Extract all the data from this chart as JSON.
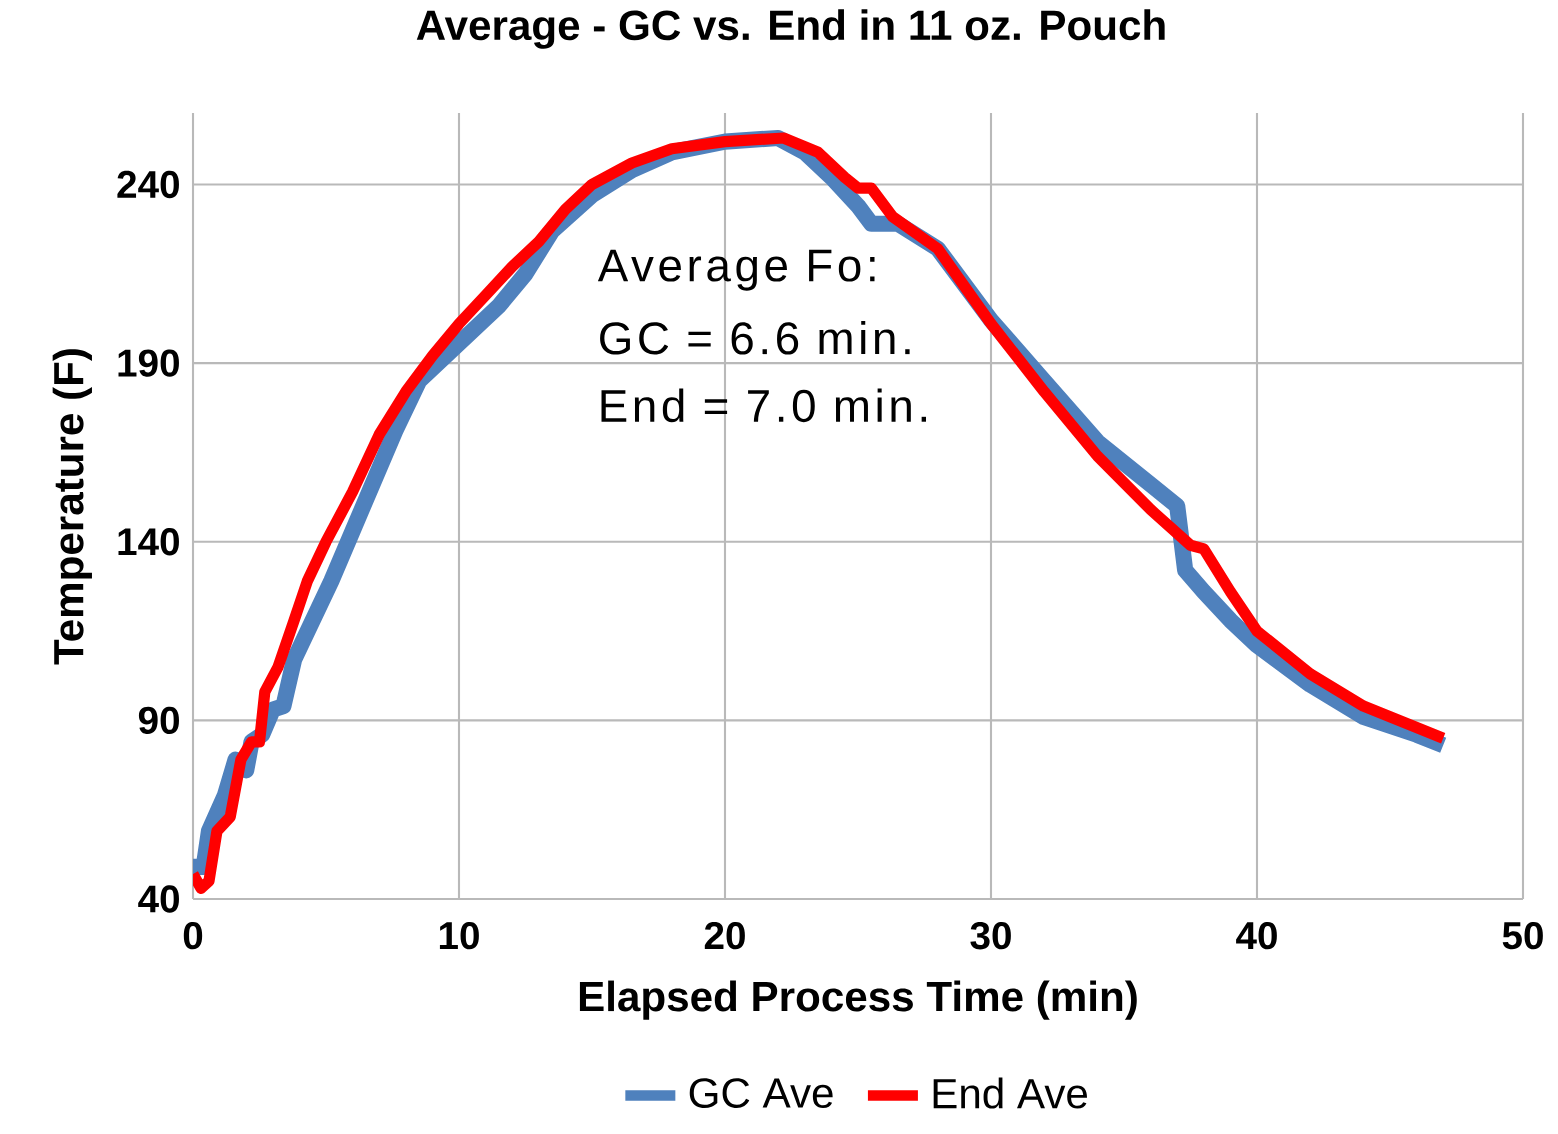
{
  "chart_data": {
    "type": "line",
    "title": "Average - GC vs. End in 11 oz. Pouch",
    "xlabel": "Elapsed Process Time (min)",
    "ylabel": "Temperature (F)",
    "xlim": [
      0,
      50
    ],
    "ylim": [
      40,
      260
    ],
    "xticks": [
      0,
      10,
      20,
      30,
      40,
      50
    ],
    "yticks": [
      40,
      90,
      140,
      190,
      240
    ],
    "grid": true,
    "legend": "bottom",
    "annotations": [
      "Average Fo:",
      "GC = 6.6 min.",
      "End = 7.0 min."
    ],
    "series": [
      {
        "name": "GC Ave",
        "color": "#4f81bd",
        "x": [
          0,
          0.4,
          0.6,
          1.2,
          1.6,
          2.0,
          2.2,
          2.6,
          3.0,
          3.4,
          3.8,
          4.5,
          5.2,
          6,
          6.8,
          7.6,
          8.5,
          9.5,
          10.5,
          11.5,
          12.5,
          13.5,
          15,
          16.5,
          18,
          20,
          22,
          23,
          24,
          25,
          25.5,
          26.5,
          28,
          30,
          32,
          34,
          36,
          37,
          37.3,
          38,
          39,
          40,
          42,
          44,
          46,
          47
        ],
        "values": [
          49,
          49,
          59,
          69,
          79,
          76,
          84,
          86,
          93,
          94,
          107,
          118,
          129,
          143,
          157,
          171,
          185,
          192,
          199,
          206,
          215,
          227,
          237,
          244,
          249,
          252,
          253,
          249,
          242,
          234,
          229,
          229,
          222,
          202,
          185,
          168,
          156,
          150,
          132,
          126,
          118,
          111,
          100,
          91,
          86,
          83
        ]
      },
      {
        "name": "End Ave",
        "color": "#ff0000",
        "x": [
          0,
          0.3,
          0.6,
          0.9,
          1.4,
          1.8,
          2.2,
          2.5,
          2.7,
          3.2,
          3.8,
          4.3,
          5,
          6,
          7,
          8,
          9,
          10,
          11,
          12,
          13,
          14,
          15,
          16.5,
          18,
          20,
          22.2,
          23.5,
          24.5,
          25,
          25.5,
          26.3,
          28,
          30,
          32,
          34,
          36,
          37.5,
          38,
          39,
          40,
          42,
          44,
          46,
          47
        ],
        "values": [
          47,
          43,
          45,
          59,
          63,
          79,
          84,
          84,
          98,
          105,
          118,
          129,
          140,
          154,
          170,
          182,
          192,
          201,
          209,
          217,
          224,
          233,
          240,
          246,
          250,
          252,
          253,
          249,
          242,
          239,
          239,
          231,
          222,
          201,
          182,
          164,
          149,
          139,
          138,
          126,
          115,
          103,
          94,
          88,
          85
        ]
      }
    ]
  }
}
